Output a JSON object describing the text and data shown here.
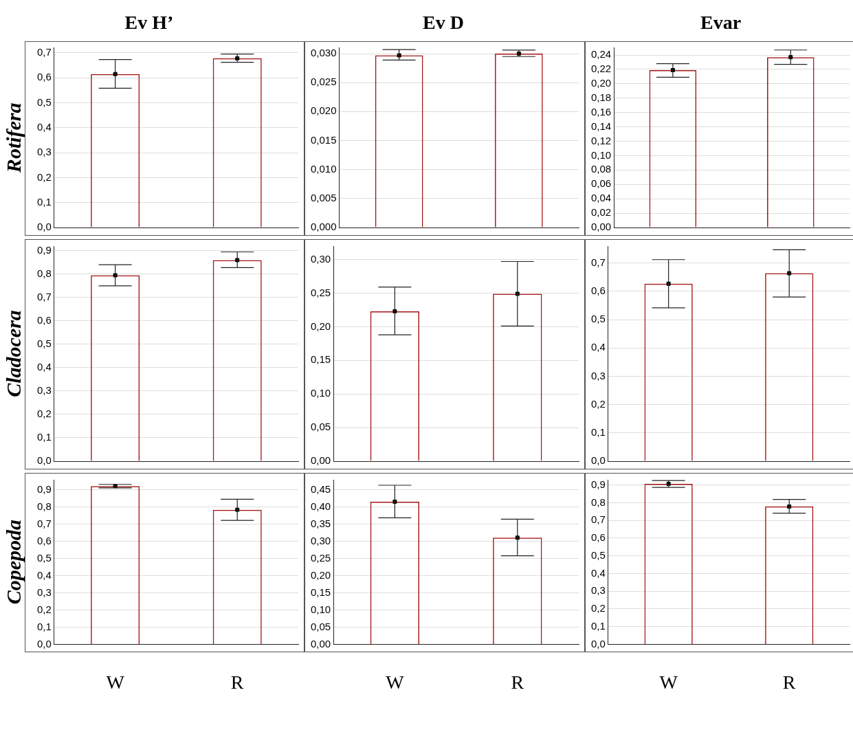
{
  "chart_data": [
    {
      "type": "bar",
      "title": "Ev H’",
      "ylabel": "Rotifera",
      "categories": [
        "W",
        "R"
      ],
      "tick_labels": "y",
      "grid": "y",
      "legend": false,
      "marker": "square",
      "ylim": [
        0,
        0.72
      ],
      "yticks": [
        {
          "value": 0,
          "label": "0,0"
        },
        {
          "value": 0.1,
          "label": "0,1"
        },
        {
          "value": 0.2,
          "label": "0,2"
        },
        {
          "value": 0.3,
          "label": "0,3"
        },
        {
          "value": 0.4,
          "label": "0,4"
        },
        {
          "value": 0.5,
          "label": "0,5"
        },
        {
          "value": 0.6,
          "label": "0,6"
        },
        {
          "value": 0.7,
          "label": "0,7"
        }
      ],
      "series": [
        {
          "color": "#a31515",
          "values": [
            0.615,
            0.678
          ],
          "errors": [
            [
              0.558,
              0.673
            ],
            [
              0.662,
              0.695
            ]
          ]
        },
        {
          "type": "scatter",
          "color": "#000000",
          "x": [
            "W",
            "R"
          ],
          "values": [
            0.615,
            0.678
          ]
        }
      ]
    },
    {
      "type": "bar",
      "title": "Ev D",
      "categories": [
        "W",
        "R"
      ],
      "tick_labels": "y",
      "grid": "y",
      "legend": false,
      "marker": "square",
      "ylim": [
        0,
        0.031
      ],
      "yticks": [
        {
          "value": 0,
          "label": "0,000"
        },
        {
          "value": 0.005,
          "label": "0,005"
        },
        {
          "value": 0.01,
          "label": "0,010"
        },
        {
          "value": 0.015,
          "label": "0,015"
        },
        {
          "value": 0.02,
          "label": "0,020"
        },
        {
          "value": 0.025,
          "label": "0,025"
        },
        {
          "value": 0.03,
          "label": "0,030"
        }
      ],
      "series": [
        {
          "color": "#a31515",
          "values": [
            0.0297,
            0.03
          ],
          "errors": [
            [
              0.0289,
              0.0307
            ],
            [
              0.0295,
              0.0306
            ]
          ]
        },
        {
          "type": "scatter",
          "color": "#000000",
          "x": [
            "W",
            "R"
          ],
          "values": [
            0.0297,
            0.03
          ]
        }
      ]
    },
    {
      "type": "bar",
      "title": "Evar",
      "categories": [
        "W",
        "R"
      ],
      "tick_labels": "y",
      "grid": "y",
      "legend": false,
      "marker": "square",
      "ylim": [
        0,
        0.25
      ],
      "yticks": [
        {
          "value": 0,
          "label": "0,00"
        },
        {
          "value": 0.02,
          "label": "0,02"
        },
        {
          "value": 0.04,
          "label": "0,04"
        },
        {
          "value": 0.06,
          "label": "0,06"
        },
        {
          "value": 0.08,
          "label": "0,08"
        },
        {
          "value": 0.1,
          "label": "0,10"
        },
        {
          "value": 0.12,
          "label": "0,12"
        },
        {
          "value": 0.14,
          "label": "0,14"
        },
        {
          "value": 0.16,
          "label": "0,16"
        },
        {
          "value": 0.18,
          "label": "0,18"
        },
        {
          "value": 0.2,
          "label": "0,20"
        },
        {
          "value": 0.22,
          "label": "0,22"
        },
        {
          "value": 0.24,
          "label": "0,24"
        }
      ],
      "series": [
        {
          "color": "#a31515",
          "values": [
            0.219,
            0.237
          ],
          "errors": [
            [
              0.209,
              0.228
            ],
            [
              0.227,
              0.247
            ]
          ]
        },
        {
          "type": "scatter",
          "color": "#000000",
          "x": [
            "W",
            "R"
          ],
          "values": [
            0.219,
            0.237
          ]
        }
      ]
    },
    {
      "type": "bar",
      "ylabel": "Cladocera",
      "categories": [
        "W",
        "R"
      ],
      "tick_labels": "y",
      "grid": "y",
      "legend": false,
      "marker": "square",
      "ylim": [
        0,
        0.92
      ],
      "yticks": [
        {
          "value": 0,
          "label": "0,0"
        },
        {
          "value": 0.1,
          "label": "0,1"
        },
        {
          "value": 0.2,
          "label": "0,2"
        },
        {
          "value": 0.3,
          "label": "0,3"
        },
        {
          "value": 0.4,
          "label": "0,4"
        },
        {
          "value": 0.5,
          "label": "0,5"
        },
        {
          "value": 0.6,
          "label": "0,6"
        },
        {
          "value": 0.7,
          "label": "0,7"
        },
        {
          "value": 0.8,
          "label": "0,8"
        },
        {
          "value": 0.9,
          "label": "0,9"
        }
      ],
      "series": [
        {
          "color": "#a31515",
          "values": [
            0.795,
            0.86
          ],
          "errors": [
            [
              0.75,
              0.84
            ],
            [
              0.828,
              0.895
            ]
          ]
        },
        {
          "type": "scatter",
          "color": "#000000",
          "x": [
            "W",
            "R"
          ],
          "values": [
            0.795,
            0.86
          ]
        }
      ]
    },
    {
      "type": "bar",
      "categories": [
        "W",
        "R"
      ],
      "tick_labels": "y",
      "grid": "y",
      "legend": false,
      "marker": "square",
      "ylim": [
        0,
        0.32
      ],
      "yticks": [
        {
          "value": 0,
          "label": "0,00"
        },
        {
          "value": 0.05,
          "label": "0,05"
        },
        {
          "value": 0.1,
          "label": "0,10"
        },
        {
          "value": 0.15,
          "label": "0,15"
        },
        {
          "value": 0.2,
          "label": "0,20"
        },
        {
          "value": 0.25,
          "label": "0,25"
        },
        {
          "value": 0.3,
          "label": "0,30"
        }
      ],
      "series": [
        {
          "color": "#a31515",
          "values": [
            0.223,
            0.249
          ],
          "errors": [
            [
              0.188,
              0.259
            ],
            [
              0.201,
              0.297
            ]
          ]
        },
        {
          "type": "scatter",
          "color": "#000000",
          "x": [
            "W",
            "R"
          ],
          "values": [
            0.223,
            0.249
          ]
        }
      ]
    },
    {
      "type": "bar",
      "categories": [
        "W",
        "R"
      ],
      "tick_labels": "y",
      "grid": "y",
      "legend": false,
      "marker": "square",
      "ylim": [
        0,
        0.76
      ],
      "yticks": [
        {
          "value": 0,
          "label": "0,0"
        },
        {
          "value": 0.1,
          "label": "0,1"
        },
        {
          "value": 0.2,
          "label": "0,2"
        },
        {
          "value": 0.3,
          "label": "0,3"
        },
        {
          "value": 0.4,
          "label": "0,4"
        },
        {
          "value": 0.5,
          "label": "0,5"
        },
        {
          "value": 0.6,
          "label": "0,6"
        },
        {
          "value": 0.7,
          "label": "0,7"
        }
      ],
      "series": [
        {
          "color": "#a31515",
          "values": [
            0.627,
            0.664
          ],
          "errors": [
            [
              0.542,
              0.712
            ],
            [
              0.58,
              0.747
            ]
          ]
        },
        {
          "type": "scatter",
          "color": "#000000",
          "x": [
            "W",
            "R"
          ],
          "values": [
            0.627,
            0.664
          ]
        }
      ]
    },
    {
      "type": "bar",
      "ylabel": "Copepoda",
      "categories": [
        "W",
        "R"
      ],
      "grid": "y",
      "legend": false,
      "marker": "square",
      "ylim": [
        0,
        0.96
      ],
      "yticks": [
        {
          "value": 0,
          "label": "0,0"
        },
        {
          "value": 0.1,
          "label": "0,1"
        },
        {
          "value": 0.2,
          "label": "0,2"
        },
        {
          "value": 0.3,
          "label": "0,3"
        },
        {
          "value": 0.4,
          "label": "0,4"
        },
        {
          "value": 0.5,
          "label": "0,5"
        },
        {
          "value": 0.6,
          "label": "0,6"
        },
        {
          "value": 0.7,
          "label": "0,7"
        },
        {
          "value": 0.8,
          "label": "0,8"
        },
        {
          "value": 0.9,
          "label": "0,9"
        }
      ],
      "series": [
        {
          "color": "#a31515",
          "values": [
            0.923,
            0.785
          ],
          "errors": [
            [
              0.912,
              0.933
            ],
            [
              0.723,
              0.846
            ]
          ]
        },
        {
          "type": "scatter",
          "color": "#000000",
          "x": [
            "W",
            "R"
          ],
          "values": [
            0.923,
            0.785
          ]
        }
      ]
    },
    {
      "type": "bar",
      "categories": [
        "W",
        "R"
      ],
      "grid": "y",
      "legend": false,
      "marker": "square",
      "ylim": [
        0,
        0.48
      ],
      "yticks": [
        {
          "value": 0,
          "label": "0,00"
        },
        {
          "value": 0.05,
          "label": "0,05"
        },
        {
          "value": 0.1,
          "label": "0,10"
        },
        {
          "value": 0.15,
          "label": "0,15"
        },
        {
          "value": 0.2,
          "label": "0,20"
        },
        {
          "value": 0.25,
          "label": "0,25"
        },
        {
          "value": 0.3,
          "label": "0,30"
        },
        {
          "value": 0.35,
          "label": "0,35"
        },
        {
          "value": 0.4,
          "label": "0,40"
        },
        {
          "value": 0.45,
          "label": "0,45"
        }
      ],
      "series": [
        {
          "color": "#a31515",
          "values": [
            0.416,
            0.311
          ],
          "errors": [
            [
              0.369,
              0.464
            ],
            [
              0.258,
              0.365
            ]
          ]
        },
        {
          "type": "scatter",
          "color": "#000000",
          "x": [
            "W",
            "R"
          ],
          "values": [
            0.416,
            0.311
          ]
        }
      ]
    },
    {
      "type": "bar",
      "categories": [
        "W",
        "R"
      ],
      "grid": "y",
      "legend": false,
      "marker": "square",
      "ylim": [
        0,
        0.93
      ],
      "yticks": [
        {
          "value": 0,
          "label": "0,0"
        },
        {
          "value": 0.1,
          "label": "0,1"
        },
        {
          "value": 0.2,
          "label": "0,2"
        },
        {
          "value": 0.3,
          "label": "0,3"
        },
        {
          "value": 0.4,
          "label": "0,4"
        },
        {
          "value": 0.5,
          "label": "0,5"
        },
        {
          "value": 0.6,
          "label": "0,6"
        },
        {
          "value": 0.7,
          "label": "0,7"
        },
        {
          "value": 0.8,
          "label": "0,8"
        },
        {
          "value": 0.9,
          "label": "0,9"
        }
      ],
      "series": [
        {
          "color": "#a31515",
          "values": [
            0.907,
            0.779
          ],
          "errors": [
            [
              0.887,
              0.926
            ],
            [
              0.741,
              0.819
            ]
          ]
        },
        {
          "type": "scatter",
          "color": "#000000",
          "x": [
            "W",
            "R"
          ],
          "values": [
            0.907,
            0.779
          ]
        }
      ]
    }
  ]
}
